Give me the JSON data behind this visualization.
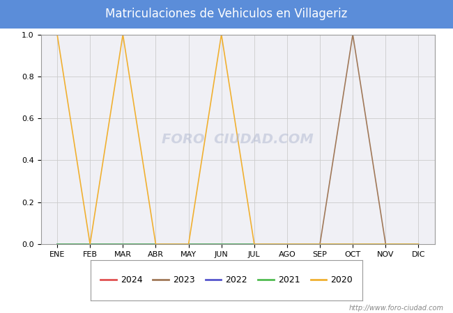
{
  "title": "Matriculaciones de Vehiculos en Villageriz",
  "title_bg_color": "#5b8dd9",
  "title_text_color": "white",
  "months": [
    "ENE",
    "FEB",
    "MAR",
    "ABR",
    "MAY",
    "JUN",
    "JUL",
    "AGO",
    "SEP",
    "OCT",
    "NOV",
    "DIC"
  ],
  "month_indices": [
    1,
    2,
    3,
    4,
    5,
    6,
    7,
    8,
    9,
    10,
    11,
    12
  ],
  "series": {
    "2024": {
      "color": "#e05050",
      "values": [
        0,
        0,
        0,
        0,
        0,
        0,
        0,
        0,
        0,
        0,
        0,
        0
      ]
    },
    "2023": {
      "color": "#a07858",
      "values": [
        0,
        0,
        0,
        0,
        0,
        0,
        0,
        0,
        0,
        1.0,
        0,
        0
      ]
    },
    "2022": {
      "color": "#5555cc",
      "values": [
        0,
        0,
        0,
        0,
        0,
        0,
        0,
        0,
        0,
        0,
        0,
        0
      ]
    },
    "2021": {
      "color": "#50bb50",
      "values": [
        0,
        0,
        0,
        0,
        0,
        0,
        0,
        0,
        0,
        0,
        0,
        0
      ]
    },
    "2020": {
      "color": "#f0b030",
      "values": [
        1.0,
        0,
        1.0,
        0,
        0,
        1.0,
        0,
        0,
        0,
        0,
        0,
        0
      ]
    }
  },
  "ylim": [
    0,
    1.0
  ],
  "yticks": [
    0.0,
    0.2,
    0.4,
    0.6,
    0.8,
    1.0
  ],
  "plot_bg_color": "#f0f0f5",
  "grid_color": "#cccccc",
  "fig_bg_color": "#ffffff",
  "watermark_plot": "FORO  CIUDAD.COM",
  "watermark_url": "http://www.foro-ciudad.com",
  "legend_order": [
    "2024",
    "2023",
    "2022",
    "2021",
    "2020"
  ]
}
